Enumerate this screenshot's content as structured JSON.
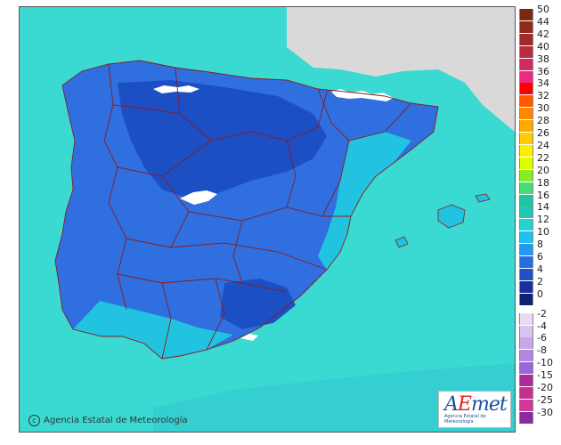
{
  "map": {
    "credit": "Agencia Estatal de Meteorología",
    "logo_text": "AEmet",
    "logo_subtitle": "Agencia Estatal de Meteorología",
    "colors": {
      "sea": "#3ad9d2",
      "land_other": "#d9d9d9",
      "cold_land": "#2f6fe0",
      "colder_land": "#1d4fc4",
      "coast_warm": "#21c3e0",
      "snow": "#ffffff",
      "borders": "#8a1c1c"
    }
  },
  "legend": {
    "warm": [
      {
        "label": "50",
        "color": "#7a2a10"
      },
      {
        "label": "44",
        "color": "#8e2a18"
      },
      {
        "label": "42",
        "color": "#9f2a2a"
      },
      {
        "label": "40",
        "color": "#b82a3e"
      },
      {
        "label": "38",
        "color": "#d02a60"
      },
      {
        "label": "36",
        "color": "#ee2a80"
      },
      {
        "label": "34",
        "color": "#ff0000"
      },
      {
        "label": "32",
        "color": "#ff5a00"
      },
      {
        "label": "30",
        "color": "#ff8800"
      },
      {
        "label": "28",
        "color": "#ffaa00"
      },
      {
        "label": "26",
        "color": "#ffcc00"
      },
      {
        "label": "24",
        "color": "#ffee00"
      },
      {
        "label": "22",
        "color": "#dfff00"
      },
      {
        "label": "20",
        "color": "#88ee22"
      },
      {
        "label": "18",
        "color": "#44dd77"
      },
      {
        "label": "16",
        "color": "#22c4a0"
      },
      {
        "label": "14",
        "color": "#22c8b4"
      },
      {
        "label": "12",
        "color": "#22d4d4"
      },
      {
        "label": "10",
        "color": "#22c0f0"
      },
      {
        "label": "8",
        "color": "#2299f0"
      },
      {
        "label": "6",
        "color": "#2270e0"
      },
      {
        "label": "4",
        "color": "#2250c8"
      },
      {
        "label": "2",
        "color": "#1a30a0"
      },
      {
        "label": "0",
        "color": "#102070"
      }
    ],
    "cold": [
      {
        "label": "-2",
        "color": "#e8dcf4"
      },
      {
        "label": "-4",
        "color": "#d8c4ee"
      },
      {
        "label": "-6",
        "color": "#c6a8e8"
      },
      {
        "label": "-8",
        "color": "#b088e0"
      },
      {
        "label": "-10",
        "color": "#9a66d8"
      },
      {
        "label": "-15",
        "color": "#b02a9e"
      },
      {
        "label": "-20",
        "color": "#c43090"
      },
      {
        "label": "-25",
        "color": "#d03a98"
      },
      {
        "label": "-30",
        "color": "#8a2aa0"
      }
    ]
  }
}
